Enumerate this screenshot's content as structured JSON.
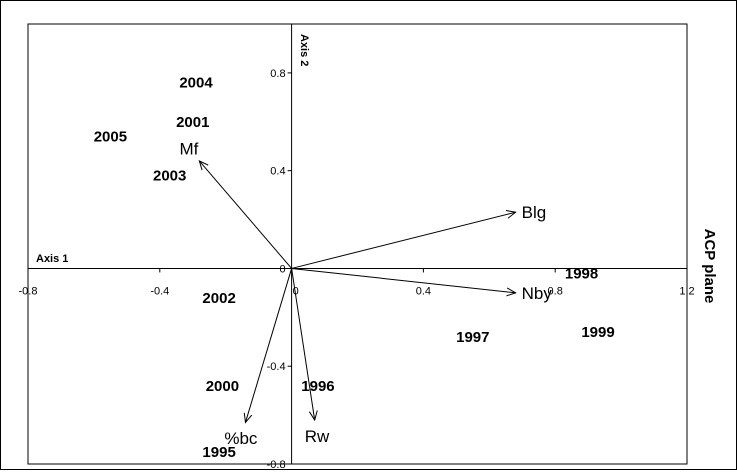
{
  "chart_data": {
    "type": "scatter",
    "title": "ACP plane",
    "xlabel": "Axis 1",
    "ylabel": "Axis 2",
    "xlim": [
      -0.8,
      1.2
    ],
    "ylim": [
      -0.8,
      1.0
    ],
    "x_ticks": [
      {
        "value": -0.8,
        "label": "-0.8"
      },
      {
        "value": -0.4,
        "label": "-0.4"
      },
      {
        "value": 0,
        "label": "0"
      },
      {
        "value": 0.4,
        "label": "0.4"
      },
      {
        "value": 0.8,
        "label": "0.8"
      },
      {
        "value": 1.2,
        "label": "1.2"
      }
    ],
    "y_ticks": [
      {
        "value": 0.8,
        "label": "0.8"
      },
      {
        "value": 0.4,
        "label": "0.4"
      },
      {
        "value": -0.4,
        "label": "-0.4"
      },
      {
        "value": -0.8,
        "label": "-0.8"
      }
    ],
    "grid": false,
    "points": [
      {
        "label": "2004",
        "x": -0.29,
        "y": 0.76
      },
      {
        "label": "2001",
        "x": -0.3,
        "y": 0.6
      },
      {
        "label": "2005",
        "x": -0.55,
        "y": 0.54
      },
      {
        "label": "2003",
        "x": -0.37,
        "y": 0.38
      },
      {
        "label": "2002",
        "x": -0.22,
        "y": -0.12
      },
      {
        "label": "2000",
        "x": -0.21,
        "y": -0.48
      },
      {
        "label": "1996",
        "x": 0.08,
        "y": -0.48
      },
      {
        "label": "1995",
        "x": -0.22,
        "y": -0.75
      },
      {
        "label": "1998",
        "x": 0.88,
        "y": -0.02
      },
      {
        "label": "1997",
        "x": 0.55,
        "y": -0.28
      },
      {
        "label": "1999",
        "x": 0.93,
        "y": -0.26
      }
    ],
    "vectors": [
      {
        "label": "Mf",
        "x": -0.28,
        "y": 0.44
      },
      {
        "label": "Blg",
        "x": 0.68,
        "y": 0.23
      },
      {
        "label": "Nby",
        "x": 0.68,
        "y": -0.1
      },
      {
        "label": "%bc",
        "x": -0.14,
        "y": -0.63
      },
      {
        "label": "Rw",
        "x": 0.07,
        "y": -0.62
      }
    ]
  }
}
